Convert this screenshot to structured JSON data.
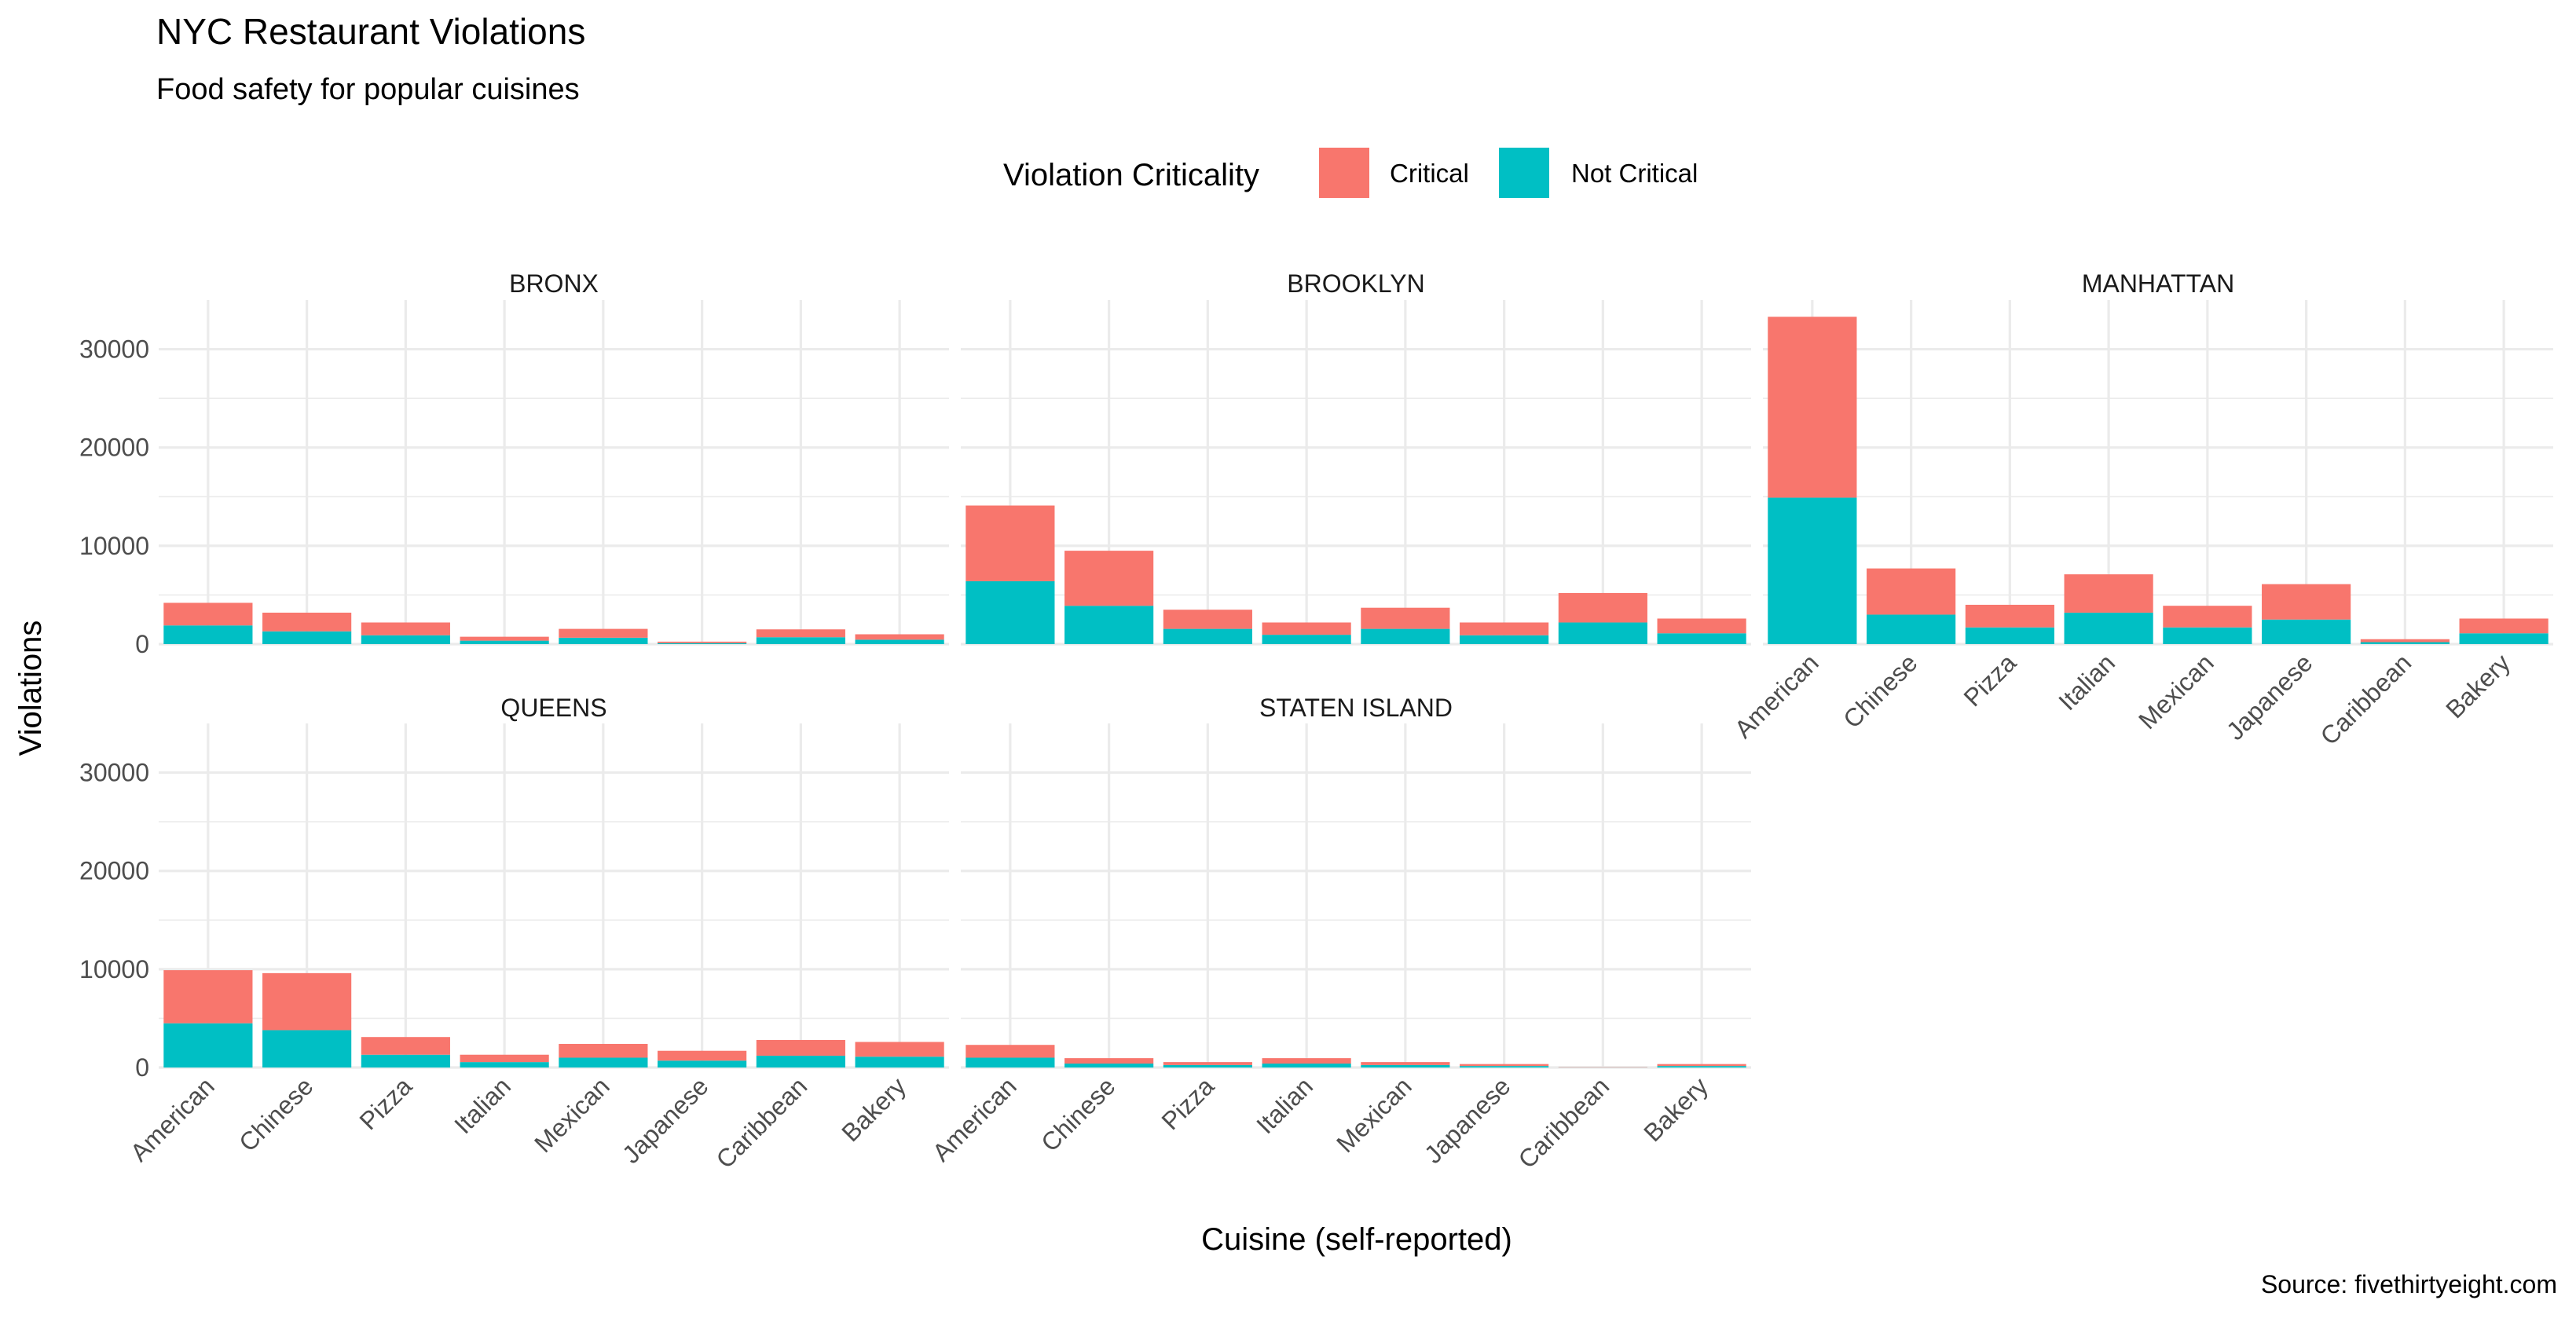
{
  "chart_data": {
    "type": "bar",
    "stacked": true,
    "faceted": true,
    "title": "NYC Restaurant Violations",
    "subtitle": "Food safety for popular cuisines",
    "xlabel": "Cuisine (self-reported)",
    "ylabel": "Violations",
    "caption": "Source: fivethirtyeight.com",
    "legend": {
      "title": "Violation Criticality",
      "position": "top",
      "items": [
        {
          "name": "Critical",
          "color": "#F8766D"
        },
        {
          "name": "Not Critical",
          "color": "#00BFC4"
        }
      ]
    },
    "ylim": [
      0,
      35000
    ],
    "y_ticks": [
      0,
      10000,
      20000,
      30000
    ],
    "y_tick_labels": [
      "0",
      "10000",
      "20000",
      "30000"
    ],
    "grid": true,
    "categories": [
      "American",
      "Chinese",
      "Pizza",
      "Italian",
      "Mexican",
      "Japanese",
      "Caribbean",
      "Bakery"
    ],
    "facets": [
      {
        "name": "BRONX",
        "series": [
          {
            "name": "Not Critical",
            "values": [
              1900,
              1300,
              900,
              350,
              650,
              100,
              700,
              450
            ]
          },
          {
            "name": "Critical",
            "values": [
              2300,
              1900,
              1300,
              400,
              900,
              150,
              800,
              550
            ]
          }
        ]
      },
      {
        "name": "BROOKLYN",
        "series": [
          {
            "name": "Not Critical",
            "values": [
              6400,
              3900,
              1550,
              950,
              1550,
              900,
              2200,
              1100
            ]
          },
          {
            "name": "Critical",
            "values": [
              7700,
              5600,
              1950,
              1250,
              2150,
              1300,
              3000,
              1500
            ]
          }
        ]
      },
      {
        "name": "MANHATTAN",
        "series": [
          {
            "name": "Not Critical",
            "values": [
              14900,
              3000,
              1700,
              3200,
              1700,
              2500,
              200,
              1100
            ]
          },
          {
            "name": "Critical",
            "values": [
              18400,
              4700,
              2300,
              3900,
              2200,
              3600,
              300,
              1500
            ]
          }
        ]
      },
      {
        "name": "QUEENS",
        "series": [
          {
            "name": "Not Critical",
            "values": [
              4500,
              3800,
              1300,
              550,
              1000,
              700,
              1200,
              1100
            ]
          },
          {
            "name": "Critical",
            "values": [
              5400,
              5800,
              1800,
              750,
              1400,
              1000,
              1600,
              1500
            ]
          }
        ]
      },
      {
        "name": "STATEN ISLAND",
        "series": [
          {
            "name": "Not Critical",
            "values": [
              1000,
              400,
              250,
              400,
              250,
              150,
              20,
              150
            ]
          },
          {
            "name": "Critical",
            "values": [
              1300,
              550,
              300,
              550,
              300,
              200,
              30,
              200
            ]
          }
        ]
      }
    ]
  }
}
